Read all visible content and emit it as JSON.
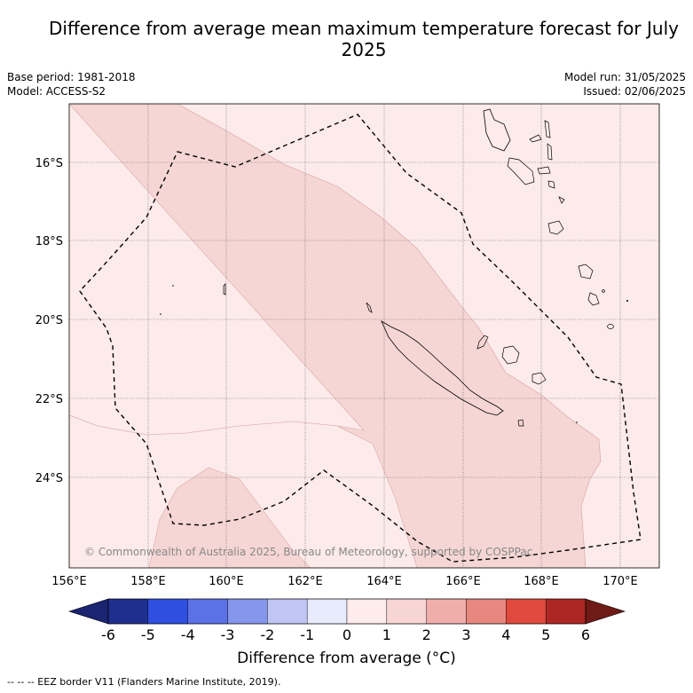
{
  "title": "Difference from average mean maximum temperature forecast for July 2025",
  "meta": {
    "base_period": "Base period: 1981-2018",
    "model": "Model: ACCESS-S2",
    "model_run": "Model run: 31/05/2025",
    "issued": "Issued: 02/06/2025"
  },
  "map": {
    "lat_labels": [
      "16°S",
      "18°S",
      "20°S",
      "22°S",
      "24°S"
    ],
    "lon_labels": [
      "156°E",
      "158°E",
      "160°E",
      "162°E",
      "164°E",
      "166°E",
      "168°E",
      "170°E"
    ],
    "copyright": "© Commonwealth of Australia 2025, Bureau of Meteorology, supported by COSPPac",
    "colors": {
      "anomaly_0_1": "#fcebea",
      "anomaly_1_2": "#f5d6d4",
      "eez_border": "#000000",
      "coastline": "#000000"
    }
  },
  "colorbar": {
    "title": "Difference from average (°C)",
    "ticks": [
      "-6",
      "-5",
      "-4",
      "-3",
      "-2",
      "-1",
      "0",
      "1",
      "2",
      "3",
      "4",
      "5",
      "6"
    ],
    "colors": [
      "#1e2f8f",
      "#2e4fe0",
      "#5a72e6",
      "#8596ec",
      "#bfc6f4",
      "#e8ebfb",
      "#fdeceb",
      "#f7d5d3",
      "#f0aeaa",
      "#e88780",
      "#e04a3e",
      "#ad2722"
    ],
    "under_color": "#1a2470",
    "over_color": "#6e1a16"
  },
  "footer": {
    "legend": "-- -- -- EEZ border V11 (Flanders Marine Institute, 2019)."
  }
}
